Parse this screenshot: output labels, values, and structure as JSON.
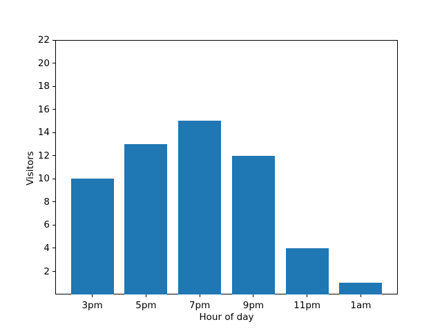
{
  "chart_data": {
    "type": "bar",
    "categories": [
      "3pm",
      "5pm",
      "7pm",
      "9pm",
      "11pm",
      "1am"
    ],
    "values": [
      10,
      13,
      15,
      12,
      4,
      1
    ],
    "title": "",
    "xlabel": "Hour of day",
    "ylabel": "Visitors",
    "ylim": [
      0,
      22
    ],
    "xlim": [
      -0.69,
      5.69
    ],
    "yticks": [
      2,
      4,
      6,
      8,
      10,
      12,
      14,
      16,
      18,
      20,
      22
    ],
    "bar_width": 0.8,
    "bar_color": "#1f77b4",
    "grid": false,
    "legend": null,
    "background_color": "#ffffff",
    "spine_color": "#000000"
  }
}
